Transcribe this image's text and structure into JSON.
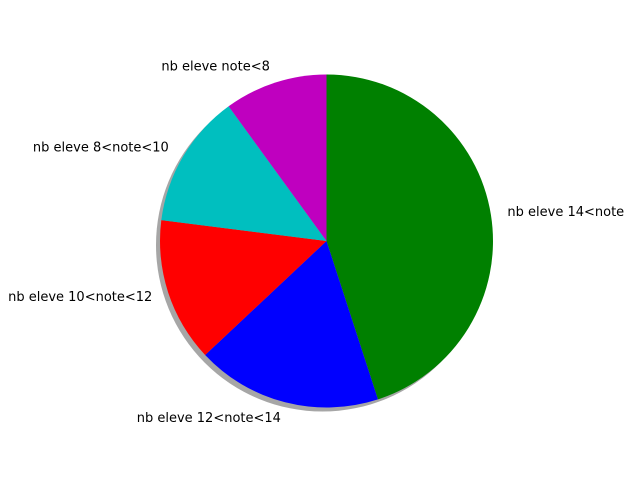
{
  "chart_data": {
    "type": "pie",
    "title": "",
    "labels": [
      "nb eleve 14<note",
      "nb eleve 12<note<14",
      "nb eleve 10<note<12",
      "nb eleve 8<note<10",
      "nb eleve note<8"
    ],
    "values": [
      45,
      18,
      14,
      13,
      10
    ],
    "colors": [
      "#008000",
      "#0000ff",
      "#ff0000",
      "#00bfbf",
      "#bf00bf"
    ],
    "start_angle": 90,
    "direction": "clockwise",
    "shadow": true
  }
}
